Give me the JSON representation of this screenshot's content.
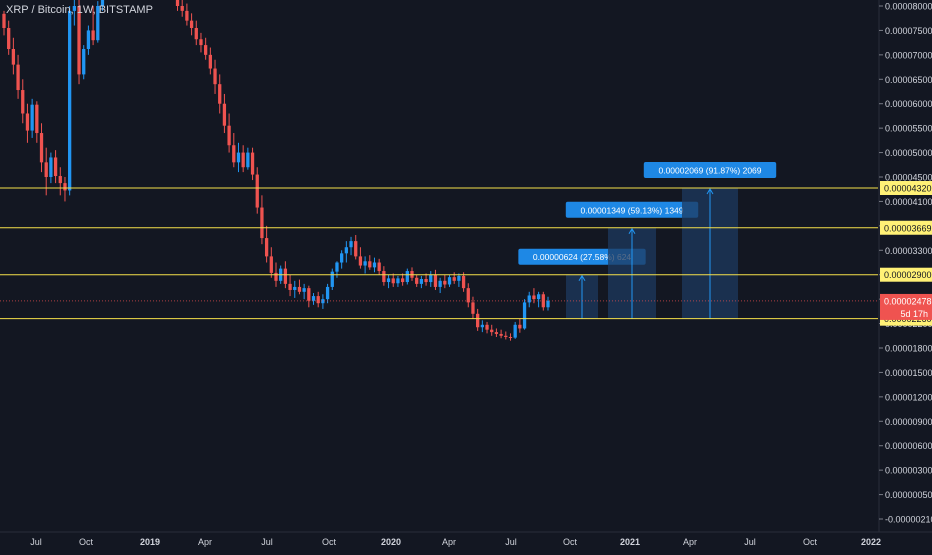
{
  "header": {
    "symbol_line": "XRP / Bitcoin, 1W, BITSTAMP"
  },
  "colors": {
    "background": "#131722",
    "up": "#26a69a",
    "up_candle": "#2196f3",
    "down_candle": "#ef5350",
    "level_line": "#f5e04a",
    "level_label_bg": "#fff176",
    "measure_fill": "#1e3a5f",
    "measure_line": "#2196f3",
    "measure_label_bg": "#1e88e5",
    "price_badge_bg": "#ef5350",
    "axis_text": "#d1d4dc"
  },
  "chart_data": {
    "type": "candlestick",
    "y_axis_ticks": [
      "0.00008000",
      "0.00007500",
      "0.00007000",
      "0.00006500",
      "0.00006000",
      "0.00005500",
      "0.00005000",
      "0.00004500",
      "0.00004100",
      "0.00003700",
      "0.00003300",
      "0.00002900",
      "0.00002500",
      "0.00002200",
      "0.00001800",
      "0.00001500",
      "0.00001200",
      "0.00000900",
      "0.00000600",
      "0.00000300",
      "0.00000050",
      "-0.00000210"
    ],
    "x_axis_ticks": [
      "Jul",
      "Oct",
      "2019",
      "Apr",
      "Jul",
      "Oct",
      "2020",
      "Apr",
      "Jul",
      "Oct",
      "2021",
      "Apr",
      "Jul",
      "Oct",
      "2022"
    ],
    "horizontal_levels": [
      {
        "label": "0.00004320"
      },
      {
        "label": "0.00003669"
      },
      {
        "label": "0.00002900"
      },
      {
        "label": "0.00002260"
      }
    ],
    "current_price": {
      "label": "0.00002478",
      "countdown": "5d 17h"
    },
    "measurements": [
      {
        "label": "0.00000624 (27.58%) 624"
      },
      {
        "label": "0.00001349 (59.13%) 1349"
      },
      {
        "label": "0.00002069 (91.87%) 2069"
      }
    ],
    "candles": [
      [
        7.84e-05,
        7.9e-05,
        7.4e-05,
        7.55e-05
      ],
      [
        7.55e-05,
        7.7e-05,
        7e-05,
        7.12e-05
      ],
      [
        7.12e-05,
        7.35e-05,
        6.6e-05,
        6.8e-05
      ],
      [
        6.8e-05,
        7e-05,
        6.1e-05,
        6.28e-05
      ],
      [
        6.28e-05,
        6.5e-05,
        5.6e-05,
        5.8e-05
      ],
      [
        5.8e-05,
        6e-05,
        5.2e-05,
        5.45e-05
      ],
      [
        5.45e-05,
        6.1e-05,
        5.3e-05,
        5.98e-05
      ],
      [
        5.98e-05,
        6.05e-05,
        5.2e-05,
        5.4e-05
      ],
      [
        5.4e-05,
        5.6e-05,
        4.6e-05,
        4.8e-05
      ],
      [
        4.8e-05,
        5.1e-05,
        4.2e-05,
        4.5e-05
      ],
      [
        4.5e-05,
        5e-05,
        4.4e-05,
        4.9e-05
      ],
      [
        4.9e-05,
        5.05e-05,
        4.4e-05,
        4.52e-05
      ],
      [
        4.52e-05,
        4.7e-05,
        4.2e-05,
        4.4e-05
      ],
      [
        4.4e-05,
        4.5e-05,
        4.1e-05,
        4.28e-05
      ],
      [
        4.28e-05,
        8e-05,
        4.2e-05,
        7.9e-05
      ],
      [
        7.9e-05,
        8.6e-05,
        7.6e-05,
        8e-05
      ],
      [
        8e-05,
        8.2e-05,
        6.4e-05,
        6.6e-05
      ],
      [
        6.6e-05,
        7.2e-05,
        6.5e-05,
        7.12e-05
      ],
      [
        7.12e-05,
        7.6e-05,
        7e-05,
        7.5e-05
      ],
      [
        7.5e-05,
        8e-05,
        7.2e-05,
        7.3e-05
      ],
      [
        7.3e-05,
        8.1e-05,
        7.25e-05,
        8e-05
      ],
      [
        8e-05,
        8.6e-05,
        7.9e-05,
        8.5e-05
      ],
      [
        8.5e-05,
        8.8e-05,
        8.2e-05,
        8.7e-05
      ],
      [
        8.7e-05,
        9e-05,
        8.5e-05,
        8.8e-05
      ],
      [
        8.8e-05,
        9.2e-05,
        8.6e-05,
        9e-05
      ],
      [
        9e-05,
        9.3e-05,
        8.8e-05,
        8.9e-05
      ],
      [
        8.9e-05,
        9.2e-05,
        8.7e-05,
        9.05e-05
      ],
      [
        9.05e-05,
        9.3e-05,
        8.8e-05,
        8.95e-05
      ],
      [
        8.95e-05,
        9.2e-05,
        8.7e-05,
        9e-05
      ],
      [
        9e-05,
        9.3e-05,
        8.8e-05,
        8.9e-05
      ],
      [
        8.9e-05,
        9.2e-05,
        8.7e-05,
        9.05e-05
      ],
      [
        9.05e-05,
        9.25e-05,
        8.8e-05,
        8.9e-05
      ],
      [
        8.9e-05,
        9.1e-05,
        8.7e-05,
        8.95e-05
      ],
      [
        8.95e-05,
        9.1e-05,
        8.7e-05,
        8.8e-05
      ],
      [
        8.8e-05,
        9e-05,
        8.6e-05,
        8.85e-05
      ],
      [
        8.85e-05,
        8.95e-05,
        8.45e-05,
        8.55e-05
      ],
      [
        8.55e-05,
        8.7e-05,
        8.25e-05,
        8.38e-05
      ],
      [
        8.38e-05,
        8.5e-05,
        7.9e-05,
        8e-05
      ],
      [
        8e-05,
        8.15e-05,
        7.78e-05,
        7.9e-05
      ],
      [
        7.9e-05,
        8.05e-05,
        7.6e-05,
        7.7e-05
      ],
      [
        7.7e-05,
        7.85e-05,
        7.4e-05,
        7.55e-05
      ],
      [
        7.55e-05,
        7.7e-05,
        7.2e-05,
        7.32e-05
      ],
      [
        7.32e-05,
        7.45e-05,
        7.05e-05,
        7.2e-05
      ],
      [
        7.2e-05,
        7.35e-05,
        6.9e-05,
        7e-05
      ],
      [
        7e-05,
        7.15e-05,
        6.6e-05,
        6.72e-05
      ],
      [
        6.72e-05,
        6.9e-05,
        6.2e-05,
        6.4e-05
      ],
      [
        6.4e-05,
        6.6e-05,
        5.8e-05,
        6e-05
      ],
      [
        6e-05,
        6.2e-05,
        5.4e-05,
        5.55e-05
      ],
      [
        5.55e-05,
        5.8e-05,
        5e-05,
        5.15e-05
      ],
      [
        5.15e-05,
        5.4e-05,
        4.7e-05,
        4.8e-05
      ],
      [
        4.8e-05,
        5.2e-05,
        4.6e-05,
        5e-05
      ],
      [
        5e-05,
        5.15e-05,
        4.6e-05,
        4.7e-05
      ],
      [
        4.7e-05,
        5.1e-05,
        4.65e-05,
        5e-05
      ],
      [
        5e-05,
        5.1e-05,
        4.45e-05,
        4.55e-05
      ],
      [
        4.55e-05,
        4.7e-05,
        3.9e-05,
        4e-05
      ],
      [
        4e-05,
        4.2e-05,
        3.4e-05,
        3.5e-05
      ],
      [
        3.5e-05,
        3.7e-05,
        3.1e-05,
        3.2e-05
      ],
      [
        3.2e-05,
        3.35e-05,
        2.85e-05,
        2.93e-05
      ],
      [
        2.93e-05,
        3.1e-05,
        2.7e-05,
        2.8e-05
      ],
      [
        2.8e-05,
        3.05e-05,
        2.75e-05,
        3e-05
      ],
      [
        3e-05,
        3.12e-05,
        2.68e-05,
        2.75e-05
      ],
      [
        2.75e-05,
        2.9e-05,
        2.55e-05,
        2.65e-05
      ],
      [
        2.65e-05,
        2.8e-05,
        2.52e-05,
        2.7e-05
      ],
      [
        2.7e-05,
        2.82e-05,
        2.58e-05,
        2.62e-05
      ],
      [
        2.62e-05,
        2.75e-05,
        2.5e-05,
        2.68e-05
      ],
      [
        2.68e-05,
        2.72e-05,
        2.4e-05,
        2.48e-05
      ],
      [
        2.48e-05,
        2.6e-05,
        2.43e-05,
        2.55e-05
      ],
      [
        2.55e-05,
        2.62e-05,
        2.4e-05,
        2.45e-05
      ],
      [
        2.45e-05,
        2.58e-05,
        2.38e-05,
        2.5e-05
      ],
      [
        2.5e-05,
        2.75e-05,
        2.45e-05,
        2.7e-05
      ],
      [
        2.7e-05,
        3e-05,
        2.65e-05,
        2.95e-05
      ],
      [
        2.95e-05,
        3.12e-05,
        2.85e-05,
        3.1e-05
      ],
      [
        3.1e-05,
        3.3e-05,
        3e-05,
        3.25e-05
      ],
      [
        3.25e-05,
        3.45e-05,
        3.1e-05,
        3.35e-05
      ],
      [
        3.35e-05,
        3.52e-05,
        3.22e-05,
        3.45e-05
      ],
      [
        3.45e-05,
        3.55e-05,
        3.15e-05,
        3.2e-05
      ],
      [
        3.2e-05,
        3.35e-05,
        3e-05,
        3.05e-05
      ],
      [
        3.05e-05,
        3.2e-05,
        2.92e-05,
        3.12e-05
      ],
      [
        3.12e-05,
        3.22e-05,
        2.98e-05,
        3.02e-05
      ],
      [
        3.02e-05,
        3.18e-05,
        2.94e-05,
        3.1e-05
      ],
      [
        3.1e-05,
        3.16e-05,
        2.9e-05,
        2.96e-05
      ],
      [
        2.96e-05,
        3.04e-05,
        2.72e-05,
        2.78e-05
      ],
      [
        2.78e-05,
        2.9e-05,
        2.68e-05,
        2.84e-05
      ],
      [
        2.84e-05,
        2.92e-05,
        2.7e-05,
        2.76e-05
      ],
      [
        2.76e-05,
        2.88e-05,
        2.7e-05,
        2.84e-05
      ],
      [
        2.84e-05,
        2.92e-05,
        2.72e-05,
        2.78e-05
      ],
      [
        2.78e-05,
        3e-05,
        2.74e-05,
        2.96e-05
      ],
      [
        2.96e-05,
        3.02e-05,
        2.8e-05,
        2.85e-05
      ],
      [
        2.85e-05,
        2.9e-05,
        2.7e-05,
        2.75e-05
      ],
      [
        2.75e-05,
        2.88e-05,
        2.68e-05,
        2.83e-05
      ],
      [
        2.83e-05,
        2.92e-05,
        2.72e-05,
        2.78e-05
      ],
      [
        2.78e-05,
        2.96e-05,
        2.7e-05,
        2.9e-05
      ],
      [
        2.9e-05,
        2.98e-05,
        2.65e-05,
        2.7e-05
      ],
      [
        2.7e-05,
        2.85e-05,
        2.6e-05,
        2.8e-05
      ],
      [
        2.8e-05,
        2.9e-05,
        2.68e-05,
        2.74e-05
      ],
      [
        2.74e-05,
        2.9e-05,
        2.7e-05,
        2.86e-05
      ],
      [
        2.86e-05,
        2.94e-05,
        2.75e-05,
        2.8e-05
      ],
      [
        2.8e-05,
        2.92e-05,
        2.7e-05,
        2.88e-05
      ],
      [
        2.88e-05,
        2.94e-05,
        2.62e-05,
        2.68e-05
      ],
      [
        2.68e-05,
        2.76e-05,
        2.4e-05,
        2.46e-05
      ],
      [
        2.46e-05,
        2.54e-05,
        2.26e-05,
        2.32e-05
      ],
      [
        2.32e-05,
        2.38e-05,
        2.08e-05,
        2.14e-05
      ],
      [
        2.14e-05,
        2.24e-05,
        2.06e-05,
        2.18e-05
      ],
      [
        2.18e-05,
        2.22e-05,
        2.04e-05,
        2.1e-05
      ],
      [
        2.1e-05,
        2.18e-05,
        2e-05,
        2.06e-05
      ],
      [
        2.06e-05,
        2.12e-05,
        1.98e-05,
        2.03e-05
      ],
      [
        2.03e-05,
        2.1e-05,
        1.96e-05,
        2e-05
      ],
      [
        2e-05,
        2.07e-05,
        1.94e-05,
        1.98e-05
      ],
      [
        1.98e-05,
        2.04e-05,
        1.92e-05,
        1.97e-05
      ],
      [
        1.97e-05,
        2.22e-05,
        1.95e-05,
        2.18e-05
      ],
      [
        2.18e-05,
        2.26e-05,
        2.05e-05,
        2.12e-05
      ],
      [
        2.12e-05,
        2.5e-05,
        2.1e-05,
        2.46e-05
      ],
      [
        2.46e-05,
        2.62e-05,
        2.4e-05,
        2.56e-05
      ],
      [
        2.56e-05,
        2.68e-05,
        2.45e-05,
        2.5e-05
      ],
      [
        2.5e-05,
        2.62e-05,
        2.4e-05,
        2.58e-05
      ],
      [
        2.58e-05,
        2.62e-05,
        2.36e-05,
        2.4e-05
      ],
      [
        2.4e-05,
        2.54e-05,
        2.36e-05,
        2.48e-05
      ]
    ]
  }
}
